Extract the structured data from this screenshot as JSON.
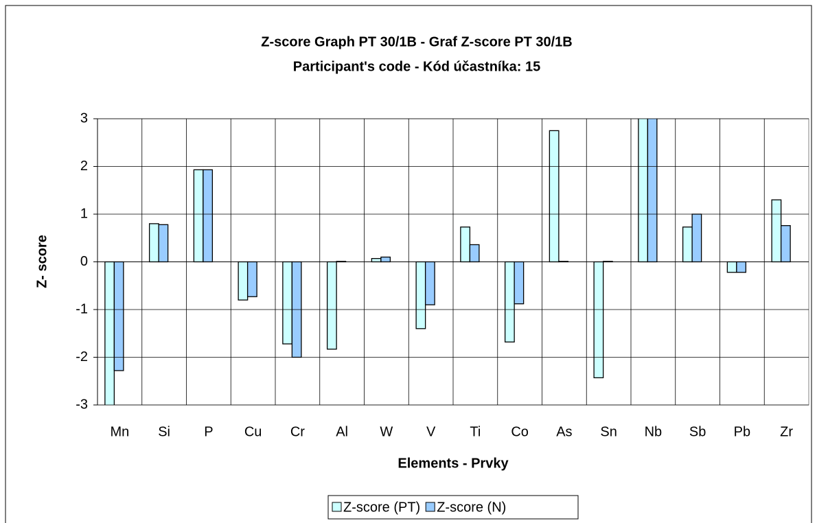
{
  "chart_data": {
    "type": "bar",
    "title": "Z-score Graph PT 30/1B - Graf Z-score PT 30/1B",
    "subtitle": "Participant's code - Kód účastníka:  15",
    "x_label": "Elements - Prvky",
    "y_label": "Z- score",
    "categories": [
      "Mn",
      "Si",
      "P",
      "Cu",
      "Cr",
      "Al",
      "W",
      "V",
      "Ti",
      "Co",
      "As",
      "Sn",
      "Nb",
      "Sb",
      "Pb",
      "Zr"
    ],
    "series": [
      {
        "name": "Z-score (PT)",
        "color": "#ccffff",
        "values": [
          -3.05,
          0.8,
          1.93,
          -0.8,
          -1.72,
          -1.83,
          0.07,
          -1.4,
          0.73,
          -1.68,
          2.75,
          -2.43,
          3.1,
          0.73,
          -0.22,
          1.3
        ]
      },
      {
        "name": "Z-score (N)",
        "color": "#99ccff",
        "values": [
          -2.28,
          0.78,
          1.93,
          -0.73,
          -2.0,
          0.01,
          0.1,
          -0.9,
          0.36,
          -0.88,
          0.01,
          0.01,
          3.1,
          1.0,
          -0.22,
          0.76
        ]
      }
    ],
    "ylim": [
      -3,
      3
    ],
    "yticks": [
      -3,
      -2,
      -1,
      0,
      1,
      2,
      3
    ],
    "grid": true,
    "legend": "bottom"
  }
}
